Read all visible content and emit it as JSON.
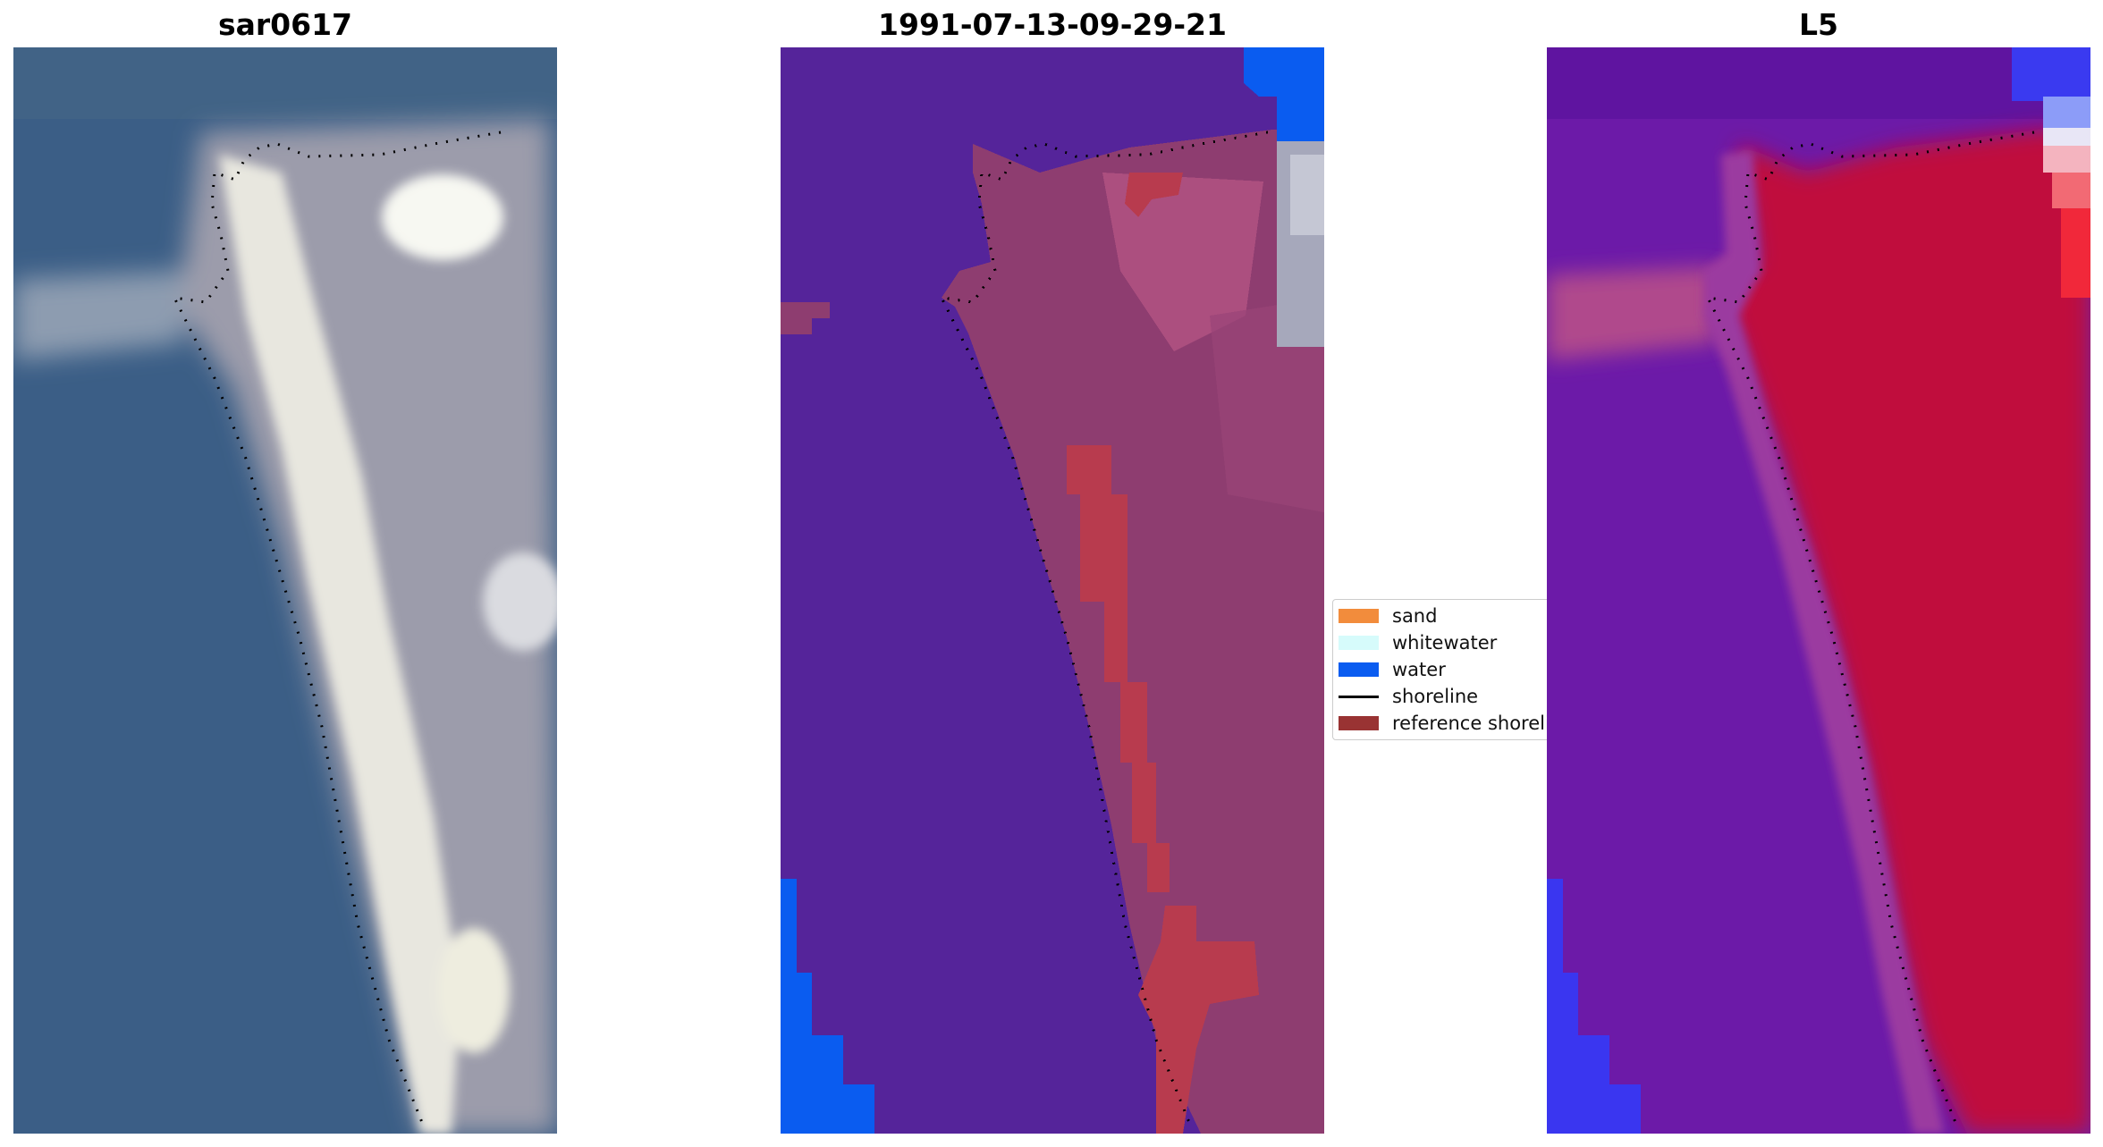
{
  "panels": [
    {
      "title": "sar0617"
    },
    {
      "title": "1991-07-13-09-29-21"
    },
    {
      "title": "L5"
    }
  ],
  "legend": {
    "items": [
      {
        "label": "sand",
        "color": "#f28c3c",
        "kind": "patch"
      },
      {
        "label": "whitewater",
        "color": "#d6fbfb",
        "kind": "patch"
      },
      {
        "label": "water",
        "color": "#0a5cf0",
        "kind": "patch"
      },
      {
        "label": "shoreline",
        "color": "#000000",
        "kind": "line"
      },
      {
        "label": "reference shoreline",
        "color": "#993333",
        "kind": "patch"
      }
    ]
  },
  "colors": {
    "rgb_water": "#3c5f86",
    "rgb_land": "#9a9aa8",
    "rgb_beach": "#ecebe4",
    "class_water_bg": "#55249a",
    "class_land": "#8e3d70",
    "class_reference": "#b83b4e",
    "mndwi_low": "#6c10a8",
    "mndwi_high": "#c0072e"
  }
}
